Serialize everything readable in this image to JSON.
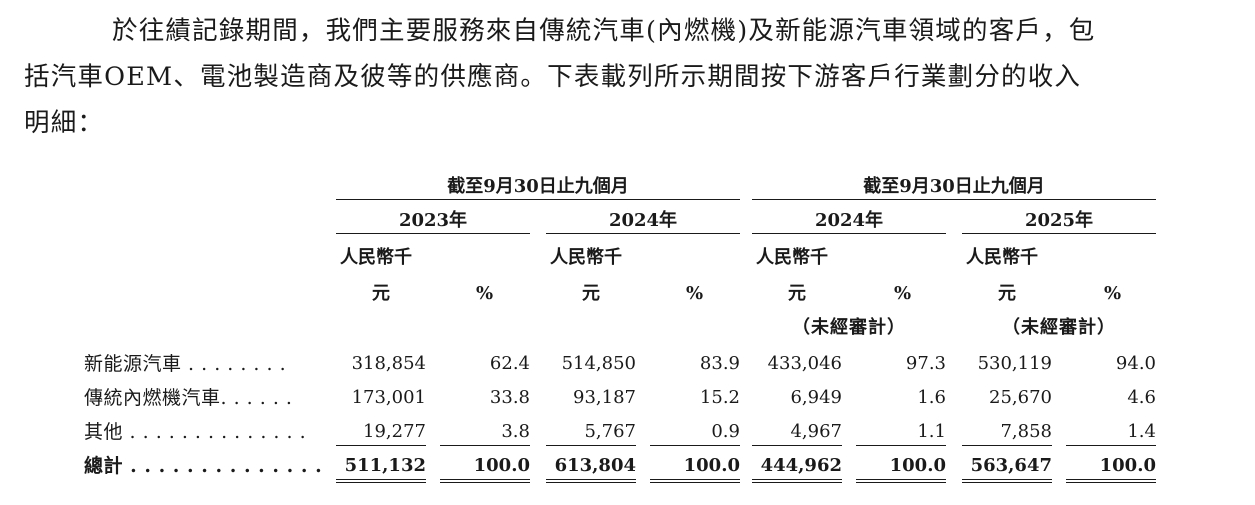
{
  "paragraph": {
    "lines": [
      "於往績記錄期間，我們主要服務來自傳統汽車(內燃機)及新能源汽車領域的客戶，包",
      "括汽車OEM、電池製造商及彼等的供應商。下表載列所示期間按下游客戶行業劃分的收入",
      "明細："
    ]
  },
  "table": {
    "period_groups": [
      "截至9月30日止九個月",
      "截至9月30日止九個月"
    ],
    "years": [
      "2023年",
      "2024年",
      "2024年",
      "2025年"
    ],
    "unit_line1": "人民幣千",
    "unit_line2": "元",
    "pct_symbol": "%",
    "unaudited": "（未經審計）",
    "rows": [
      {
        "label": "新能源汽車 . . . . . . . .",
        "values": [
          "318,854",
          "62.4",
          "514,850",
          "83.9",
          "433,046",
          "97.3",
          "530,119",
          "94.0"
        ]
      },
      {
        "label": "傳統內燃機汽車. . . . . .",
        "values": [
          "173,001",
          "33.8",
          "93,187",
          "15.2",
          "6,949",
          "1.6",
          "25,670",
          "4.6"
        ]
      },
      {
        "label": "其他 . . . . . . . . . . . . . .",
        "values": [
          "19,277",
          "3.8",
          "5,767",
          "0.9",
          "4,967",
          "1.1",
          "7,858",
          "1.4"
        ]
      }
    ],
    "total": {
      "label": "總計 . . . . . . . . . . . . . .",
      "values": [
        "511,132",
        "100.0",
        "613,804",
        "100.0",
        "444,962",
        "100.0",
        "563,647",
        "100.0"
      ]
    }
  }
}
